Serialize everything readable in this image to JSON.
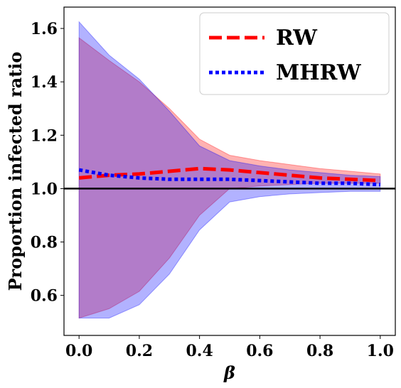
{
  "chart_data": {
    "type": "line",
    "xlabel": "β",
    "ylabel": "Proportion infected ratio",
    "xlim": [
      -0.05,
      1.05
    ],
    "ylim": [
      0.45,
      1.68
    ],
    "xticks": [
      0.0,
      0.2,
      0.4,
      0.6,
      0.8,
      1.0
    ],
    "xtick_labels": [
      "0.0",
      "0.2",
      "0.4",
      "0.6",
      "0.8",
      "1.0"
    ],
    "yticks": [
      0.6,
      0.8,
      1.0,
      1.2,
      1.4,
      1.6
    ],
    "ytick_labels": [
      "0.6",
      "0.8",
      "1.0",
      "1.2",
      "1.4",
      "1.6"
    ],
    "reference_line": 1.0,
    "legend_position": "upper right",
    "x": [
      0.0,
      0.1,
      0.2,
      0.3,
      0.4,
      0.5,
      0.6,
      0.7,
      0.8,
      0.9,
      1.0
    ],
    "series": [
      {
        "name": "RW",
        "color": "#ff0000",
        "linestyle": "dashed",
        "values": [
          1.04,
          1.05,
          1.055,
          1.065,
          1.075,
          1.07,
          1.06,
          1.05,
          1.04,
          1.035,
          1.03
        ],
        "band_lower": [
          0.515,
          0.55,
          0.615,
          0.74,
          0.9,
          1.0,
          1.01,
          1.015,
          1.02,
          1.02,
          1.02
        ],
        "band_upper": [
          1.565,
          1.48,
          1.4,
          1.3,
          1.185,
          1.125,
          1.105,
          1.09,
          1.075,
          1.065,
          1.055
        ],
        "band_color": "rgba(255,0,0,0.3)"
      },
      {
        "name": "MHRW",
        "color": "#0000ff",
        "linestyle": "dotted",
        "values": [
          1.07,
          1.05,
          1.04,
          1.035,
          1.035,
          1.035,
          1.03,
          1.025,
          1.02,
          1.02,
          1.015
        ],
        "band_lower": [
          0.515,
          0.515,
          0.565,
          0.68,
          0.845,
          0.95,
          0.97,
          0.98,
          0.985,
          0.99,
          0.99
        ],
        "band_upper": [
          1.625,
          1.5,
          1.41,
          1.29,
          1.16,
          1.105,
          1.085,
          1.07,
          1.06,
          1.05,
          1.045
        ],
        "band_color": "rgba(0,0,255,0.3)"
      }
    ]
  }
}
